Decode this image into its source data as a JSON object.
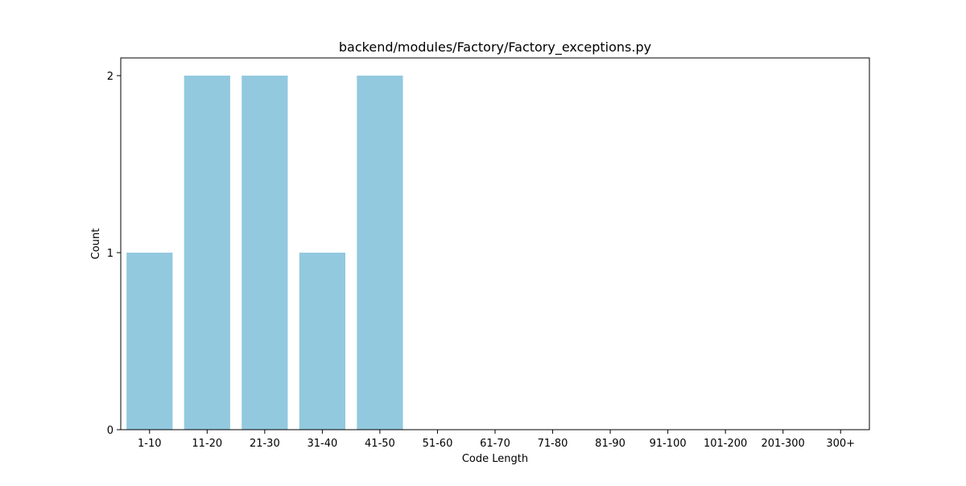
{
  "chart_data": {
    "type": "bar",
    "title": "backend/modules/Factory/Factory_exceptions.py",
    "xlabel": "Code Length",
    "ylabel": "Count",
    "categories": [
      "1-10",
      "11-20",
      "21-30",
      "31-40",
      "41-50",
      "51-60",
      "61-70",
      "71-80",
      "81-90",
      "91-100",
      "101-200",
      "201-300",
      "300+"
    ],
    "values": [
      1,
      2,
      2,
      1,
      2,
      0,
      0,
      0,
      0,
      0,
      0,
      0,
      0
    ],
    "yticks": [
      0,
      1,
      2
    ],
    "ylim": [
      0,
      2.1
    ],
    "grid": false,
    "bar_color": "#92c9df"
  }
}
